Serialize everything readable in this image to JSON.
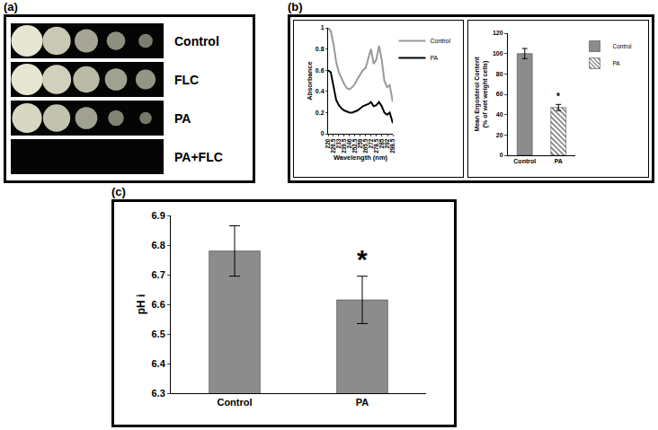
{
  "panel_labels": [
    "(a)",
    "(b)",
    "(c)"
  ],
  "spot_assay": {
    "rows": [
      {
        "label": "Control",
        "growth": [
          1,
          0.8,
          0.55,
          0.35,
          0.2
        ]
      },
      {
        "label": "FLC",
        "growth": [
          1,
          0.85,
          0.7,
          0.5,
          0.4
        ]
      },
      {
        "label": "PA",
        "growth": [
          0.9,
          0.75,
          0.5,
          0.25,
          0.15
        ]
      },
      {
        "label": "PA+FLC",
        "growth": [
          0,
          0,
          0,
          0,
          0
        ]
      }
    ]
  },
  "chart_data": [
    {
      "type": "line",
      "x_label": "Wavelength (nm)",
      "y_label": "Absorbance",
      "x": [
        220,
        223.25,
        226.5,
        229.75,
        233,
        236.25,
        239.5,
        242.75,
        246,
        249.25,
        252.5,
        255.75,
        259,
        262.25,
        265.5,
        268.75,
        272,
        275.25,
        278.5,
        281.75,
        285,
        288.25,
        291.5,
        294.75,
        298.5
      ],
      "series": [
        {
          "name": "Control",
          "color": "#999999",
          "values": [
            1.0,
            0.97,
            0.85,
            0.68,
            0.58,
            0.52,
            0.47,
            0.43,
            0.42,
            0.44,
            0.47,
            0.52,
            0.56,
            0.6,
            0.62,
            0.72,
            0.8,
            0.66,
            0.7,
            0.83,
            0.7,
            0.5,
            0.44,
            0.46,
            0.3
          ]
        },
        {
          "name": "PA",
          "color": "#000000",
          "values": [
            0.6,
            0.58,
            0.45,
            0.32,
            0.27,
            0.24,
            0.22,
            0.21,
            0.2,
            0.2,
            0.21,
            0.22,
            0.24,
            0.26,
            0.27,
            0.28,
            0.3,
            0.26,
            0.27,
            0.3,
            0.26,
            0.2,
            0.18,
            0.2,
            0.1
          ]
        }
      ],
      "xlim": [
        220,
        298.5
      ],
      "xticks": [
        220,
        226.5,
        233,
        239.5,
        246,
        252.5,
        259,
        265.5,
        272,
        278.5,
        285,
        292,
        298.5
      ],
      "ylim": [
        0,
        1
      ],
      "yticks": [
        0,
        0.2,
        0.4,
        0.6,
        0.8,
        1
      ],
      "legend": "right"
    },
    {
      "type": "bar",
      "y_label": "Mean Ergosterol Content (% of wet weight cells)",
      "categories": [
        "Control",
        "PA"
      ],
      "values": [
        100,
        47
      ],
      "errors": [
        5,
        3
      ],
      "colors": [
        "#8c8c8c",
        "#b5b5b5"
      ],
      "ylim": [
        0,
        120
      ],
      "yticks": [
        0,
        20,
        40,
        60,
        80,
        100,
        120
      ],
      "legend": "right",
      "annotations": [
        {
          "category": "PA",
          "text": "*"
        }
      ]
    },
    {
      "type": "bar",
      "y_label": "pH i",
      "categories": [
        "Control",
        "PA"
      ],
      "values": [
        6.78,
        6.615
      ],
      "errors": [
        0.085,
        0.08
      ],
      "colors": [
        "#8c8c8c",
        "#8c8c8c"
      ],
      "ylim": [
        6.3,
        6.9
      ],
      "yticks": [
        6.3,
        6.4,
        6.5,
        6.6,
        6.7,
        6.8,
        6.9
      ],
      "annotations": [
        {
          "category": "PA",
          "text": "*"
        }
      ]
    }
  ]
}
